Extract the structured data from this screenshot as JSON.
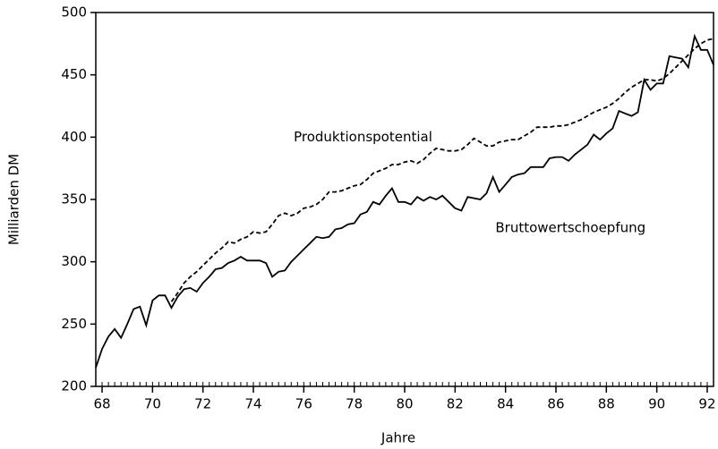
{
  "chart_data": {
    "type": "line",
    "xlabel": "Jahre",
    "ylabel": "Milliarden DM",
    "annotations": [
      {
        "text": "Produktionspotential",
        "x": 75.6,
        "y": 400
      },
      {
        "text": "Bruttowertschoepfung",
        "x": 83.6,
        "y": 327
      }
    ],
    "x": [
      67.75,
      68,
      68.25,
      68.5,
      68.75,
      69,
      69.25,
      69.5,
      69.75,
      70,
      70.25,
      70.5,
      70.75,
      71,
      71.25,
      71.5,
      71.75,
      72,
      72.25,
      72.5,
      72.75,
      73,
      73.25,
      73.5,
      73.75,
      74,
      74.25,
      74.5,
      74.75,
      75,
      75.25,
      75.5,
      75.75,
      76,
      76.25,
      76.5,
      76.75,
      77,
      77.25,
      77.5,
      77.75,
      78,
      78.25,
      78.5,
      78.75,
      79,
      79.25,
      79.5,
      79.75,
      80,
      80.25,
      80.5,
      80.75,
      81,
      81.25,
      81.5,
      81.75,
      82,
      82.25,
      82.5,
      82.75,
      83,
      83.25,
      83.5,
      83.75,
      84,
      84.25,
      84.5,
      84.75,
      85,
      85.25,
      85.5,
      85.75,
      86,
      86.25,
      86.5,
      86.75,
      87,
      87.25,
      87.5,
      87.75,
      88,
      88.25,
      88.5,
      88.75,
      89,
      89.25,
      89.5,
      89.75,
      90,
      90.25,
      90.5,
      90.75,
      91,
      91.25,
      91.5,
      91.75,
      92,
      92.25
    ],
    "series": [
      {
        "name": "Bruttowertschoepfung",
        "color": "#000000",
        "dash": "solid",
        "values": [
          215,
          230,
          240,
          246,
          239,
          250,
          262,
          264,
          249,
          269,
          273,
          273,
          263,
          272,
          278,
          279,
          276,
          283,
          288,
          294,
          295,
          299,
          301,
          304,
          301,
          301,
          301,
          299,
          288,
          292,
          293,
          300,
          305,
          310,
          315,
          320,
          319,
          320,
          326,
          327,
          330,
          331,
          338,
          340,
          348,
          346,
          353,
          359,
          348,
          348,
          346,
          352,
          349,
          352,
          350,
          353,
          348,
          343,
          341,
          352,
          351,
          350,
          355,
          368,
          356,
          362,
          368,
          370,
          371,
          376,
          376,
          376,
          383,
          384,
          384,
          381,
          386,
          390,
          394,
          402,
          398,
          403,
          407,
          421,
          419,
          417,
          420,
          446,
          438,
          443,
          443,
          465,
          464,
          463,
          456,
          481,
          470,
          470,
          458
        ]
      },
      {
        "name": "Produktionspotential",
        "color": "#000000",
        "dash": "dashed",
        "values": [
          null,
          null,
          null,
          null,
          null,
          null,
          null,
          null,
          null,
          null,
          null,
          null,
          268,
          275,
          283,
          288,
          292,
          297,
          302,
          307,
          311,
          316,
          315,
          318,
          320,
          324,
          323,
          324,
          330,
          337,
          339,
          337,
          339,
          343,
          344,
          346,
          350,
          356,
          356,
          357,
          359,
          361,
          362,
          366,
          371,
          373,
          375,
          378,
          378,
          380,
          381,
          379,
          382,
          387,
          391,
          390,
          389,
          389,
          390,
          394,
          399,
          396,
          393,
          393,
          396,
          397,
          398,
          398,
          401,
          404,
          408,
          408,
          408,
          409,
          409,
          410,
          412,
          414,
          417,
          420,
          422,
          424,
          427,
          431,
          436,
          440,
          443,
          446,
          446,
          445,
          447,
          451,
          456,
          461,
          466,
          471,
          475,
          478,
          479
        ]
      }
    ],
    "xlim": [
      67.75,
      92.25
    ],
    "xticks": [
      68,
      70,
      72,
      74,
      76,
      78,
      80,
      82,
      84,
      86,
      88,
      90,
      92
    ],
    "ylim": [
      200,
      500
    ],
    "yticks": [
      200,
      250,
      300,
      350,
      400,
      450,
      500
    ],
    "grid": false
  }
}
